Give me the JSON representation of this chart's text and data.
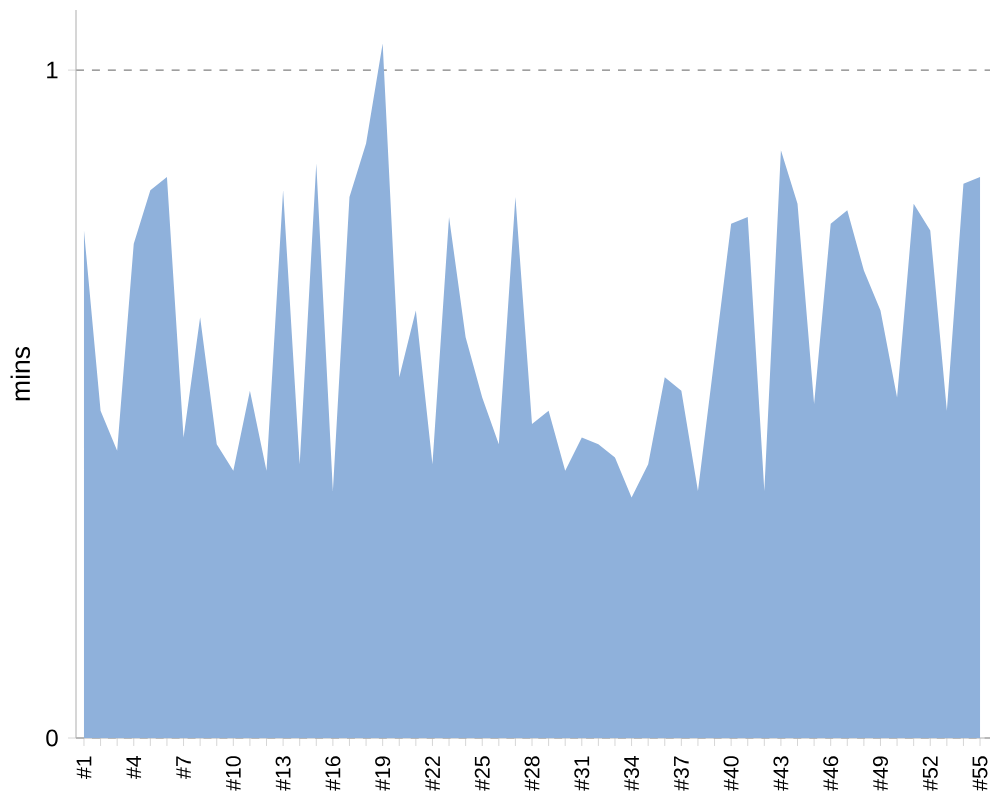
{
  "chart_data": {
    "type": "area",
    "ylabel": "mins",
    "categories": [
      "#1",
      null,
      null,
      "#4",
      null,
      null,
      "#7",
      null,
      null,
      "#10",
      null,
      null,
      "#13",
      null,
      null,
      "#16",
      null,
      null,
      "#19",
      null,
      null,
      "#22",
      null,
      null,
      "#25",
      null,
      null,
      "#28",
      null,
      null,
      "#31",
      null,
      null,
      "#34",
      null,
      null,
      "#37",
      null,
      null,
      "#40",
      null,
      null,
      "#43",
      null,
      null,
      "#46",
      null,
      null,
      "#49",
      null,
      null,
      "#52",
      null,
      null,
      "#55"
    ],
    "values": [
      0.76,
      0.49,
      0.43,
      0.74,
      0.82,
      0.84,
      0.45,
      0.63,
      0.44,
      0.4,
      0.52,
      0.4,
      0.82,
      0.41,
      0.86,
      0.37,
      0.81,
      0.89,
      1.04,
      0.54,
      0.64,
      0.41,
      0.78,
      0.6,
      0.51,
      0.44,
      0.81,
      0.47,
      0.49,
      0.4,
      0.45,
      0.44,
      0.42,
      0.36,
      0.41,
      0.54,
      0.52,
      0.37,
      0.57,
      0.77,
      0.78,
      0.37,
      0.88,
      0.8,
      0.5,
      0.77,
      0.79,
      0.7,
      0.64,
      0.51,
      0.8,
      0.76,
      0.49,
      0.83,
      0.84
    ],
    "color": "#8fb1db",
    "ylim": [
      0,
      1.09
    ],
    "yticks": [
      0,
      1
    ],
    "grid": "y"
  }
}
